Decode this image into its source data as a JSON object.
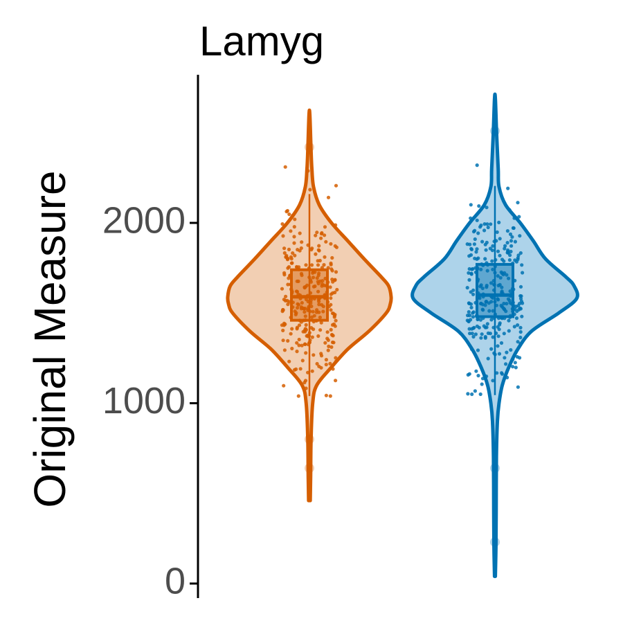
{
  "chart_data": {
    "type": "violin",
    "title": "Lamyg",
    "xlabel": "",
    "ylabel": "Original Measure",
    "ylim": [
      0,
      2700
    ],
    "yticks": [
      0,
      1000,
      2000
    ],
    "x_axis_shown": false,
    "grid": false,
    "legend": "none",
    "series": [
      {
        "color": "#d55e00",
        "fill": "#f2cfb3",
        "min": 460,
        "max": 2600,
        "median": 1590,
        "q1": 1460,
        "q3": 1740,
        "outliers": [
          2420,
          800,
          640
        ],
        "density": [
          [
            460,
            0.01
          ],
          [
            600,
            0.015
          ],
          [
            800,
            0.02
          ],
          [
            1000,
            0.04
          ],
          [
            1100,
            0.09
          ],
          [
            1200,
            0.27
          ],
          [
            1300,
            0.47
          ],
          [
            1400,
            0.73
          ],
          [
            1500,
            0.94
          ],
          [
            1550,
            0.99
          ],
          [
            1590,
            1.0
          ],
          [
            1650,
            0.97
          ],
          [
            1700,
            0.88
          ],
          [
            1800,
            0.67
          ],
          [
            1900,
            0.47
          ],
          [
            2000,
            0.27
          ],
          [
            2100,
            0.12
          ],
          [
            2200,
            0.05
          ],
          [
            2300,
            0.03
          ],
          [
            2400,
            0.02
          ],
          [
            2600,
            0.005
          ]
        ]
      },
      {
        "color": "#0072b2",
        "fill": "#add3ea",
        "min": 40,
        "max": 2690,
        "median": 1600,
        "q1": 1480,
        "q3": 1770,
        "outliers": [
          2510,
          640,
          230
        ],
        "density": [
          [
            40,
            0.005
          ],
          [
            200,
            0.012
          ],
          [
            400,
            0.015
          ],
          [
            700,
            0.018
          ],
          [
            900,
            0.03
          ],
          [
            1000,
            0.05
          ],
          [
            1100,
            0.09
          ],
          [
            1200,
            0.17
          ],
          [
            1300,
            0.28
          ],
          [
            1400,
            0.45
          ],
          [
            1500,
            0.78
          ],
          [
            1580,
            1.0
          ],
          [
            1650,
            0.97
          ],
          [
            1700,
            0.87
          ],
          [
            1800,
            0.62
          ],
          [
            1900,
            0.47
          ],
          [
            2000,
            0.31
          ],
          [
            2100,
            0.13
          ],
          [
            2200,
            0.05
          ],
          [
            2300,
            0.04
          ],
          [
            2500,
            0.02
          ],
          [
            2690,
            0.005
          ]
        ]
      }
    ]
  }
}
